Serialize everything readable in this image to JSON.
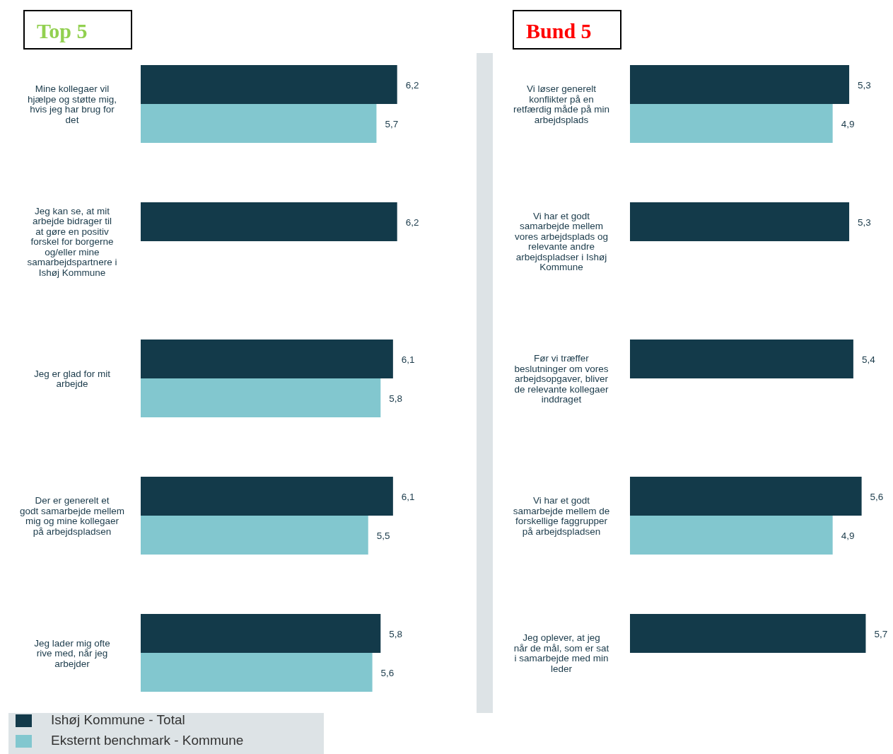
{
  "chart_data": [
    {
      "type": "bar",
      "orientation": "horizontal",
      "title": "Top 5",
      "categories": [
        "Mine kollegaer vil hjælpe og støtte mig, hvis jeg har brug for det",
        "Jeg kan se, at mit arbejde bidrager til at gøre en positiv forskel for borgerne og/eller mine samarbejdspartnere i Ishøj Kommune",
        "Jeg er glad for mit arbejde",
        "Der er generelt et godt samarbejde mellem mig og mine kollegaer på arbejdspladsen",
        "Jeg lader mig ofte rive med, når jeg arbejder"
      ],
      "series": [
        {
          "name": "Ishøj Kommune - Total",
          "color": "#133a4a",
          "values": [
            6.2,
            6.2,
            6.1,
            6.1,
            5.8
          ],
          "value_labels": [
            "6,2",
            "6,2",
            "6,1",
            "6,1",
            "5,8"
          ]
        },
        {
          "name": "Eksternt benchmark - Kommune",
          "color": "#82c7cf",
          "values": [
            5.7,
            null,
            5.8,
            5.5,
            5.6
          ],
          "value_labels": [
            "5,7",
            null,
            "5,8",
            "5,5",
            "5,6"
          ]
        }
      ],
      "legend": "bottom"
    },
    {
      "type": "bar",
      "orientation": "horizontal",
      "title": "Bund 5",
      "categories": [
        "Vi løser generelt konflikter på en retfærdig måde på min arbejdsplads",
        "Vi har et godt samarbejde mellem vores arbejdsplads og relevante andre arbejdspladser i Ishøj Kommune",
        "Før vi træffer beslutninger om vores arbejdsopgaver, bliver de relevante kollegaer inddraget",
        "Vi har et godt samarbejde mellem de forskellige faggrupper på arbejdspladsen",
        "Jeg oplever, at jeg når de mål, som er sat i samarbejde med min leder"
      ],
      "series": [
        {
          "color": "#133a4a",
          "values": [
            5.3,
            5.3,
            5.4,
            5.6,
            5.7
          ],
          "value_labels": [
            "5,3",
            "5,3",
            "5,4",
            "5,6",
            "5,7"
          ]
        },
        {
          "color": "#82c7cf",
          "values": [
            4.9,
            null,
            null,
            4.9,
            null
          ],
          "value_labels": [
            "4,9",
            null,
            null,
            "4,9",
            null
          ]
        }
      ]
    }
  ]
}
